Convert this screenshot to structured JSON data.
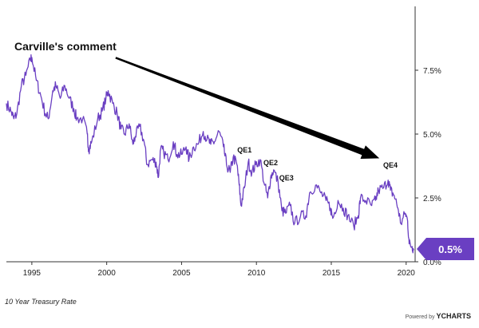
{
  "caption": "10 Year Treasury Rate",
  "branding": {
    "prefix": "Powered by ",
    "mark": "YCHARTS"
  },
  "colors": {
    "line": "#6a3fc2",
    "badge": "#6a3fc2",
    "badge_text": "#ffffff",
    "arrow": "#000000"
  },
  "chart_data": {
    "type": "line",
    "series": [
      {
        "values": [
          [
            1993.3,
            6.2
          ],
          [
            1993.6,
            5.9
          ],
          [
            1993.8,
            5.6
          ],
          [
            1994.0,
            5.8
          ],
          [
            1994.3,
            6.9
          ],
          [
            1994.6,
            7.3
          ],
          [
            1994.9,
            7.9
          ],
          [
            1995.0,
            8.0
          ],
          [
            1995.3,
            7.1
          ],
          [
            1995.6,
            6.5
          ],
          [
            1995.9,
            5.8
          ],
          [
            1996.1,
            5.6
          ],
          [
            1996.4,
            6.7
          ],
          [
            1996.6,
            6.9
          ],
          [
            1996.9,
            6.4
          ],
          [
            1997.2,
            6.9
          ],
          [
            1997.5,
            6.4
          ],
          [
            1997.8,
            6.0
          ],
          [
            1998.0,
            5.6
          ],
          [
            1998.4,
            5.6
          ],
          [
            1998.7,
            5.0
          ],
          [
            1998.8,
            4.4
          ],
          [
            1999.0,
            4.7
          ],
          [
            1999.4,
            5.6
          ],
          [
            1999.7,
            5.9
          ],
          [
            1999.95,
            6.4
          ],
          [
            2000.1,
            6.7
          ],
          [
            2000.4,
            6.2
          ],
          [
            2000.7,
            5.8
          ],
          [
            2000.95,
            5.2
          ],
          [
            2001.2,
            5.0
          ],
          [
            2001.5,
            5.4
          ],
          [
            2001.75,
            4.6
          ],
          [
            2001.9,
            4.9
          ],
          [
            2002.2,
            5.3
          ],
          [
            2002.5,
            4.7
          ],
          [
            2002.7,
            3.8
          ],
          [
            2003.0,
            4.0
          ],
          [
            2003.3,
            3.9
          ],
          [
            2003.45,
            3.3
          ],
          [
            2003.6,
            4.4
          ],
          [
            2003.8,
            4.3
          ],
          [
            2004.1,
            4.0
          ],
          [
            2004.45,
            4.7
          ],
          [
            2004.7,
            4.2
          ],
          [
            2005.0,
            4.2
          ],
          [
            2005.3,
            4.5
          ],
          [
            2005.5,
            4.0
          ],
          [
            2005.8,
            4.5
          ],
          [
            2006.1,
            4.6
          ],
          [
            2006.45,
            5.1
          ],
          [
            2006.7,
            4.8
          ],
          [
            2006.95,
            4.6
          ],
          [
            2007.2,
            4.7
          ],
          [
            2007.5,
            5.1
          ],
          [
            2007.8,
            4.5
          ],
          [
            2008.0,
            3.8
          ],
          [
            2008.25,
            3.5
          ],
          [
            2008.45,
            4.1
          ],
          [
            2008.7,
            3.8
          ],
          [
            2008.85,
            3.0
          ],
          [
            2008.97,
            2.2
          ],
          [
            2009.2,
            2.9
          ],
          [
            2009.45,
            3.9
          ],
          [
            2009.7,
            3.5
          ],
          [
            2009.95,
            3.8
          ],
          [
            2010.25,
            4.0
          ],
          [
            2010.55,
            3.0
          ],
          [
            2010.75,
            2.5
          ],
          [
            2010.95,
            3.3
          ],
          [
            2011.15,
            3.6
          ],
          [
            2011.45,
            3.1
          ],
          [
            2011.7,
            2.0
          ],
          [
            2011.95,
            1.9
          ],
          [
            2012.25,
            2.2
          ],
          [
            2012.55,
            1.5
          ],
          [
            2012.95,
            1.8
          ],
          [
            2013.3,
            1.8
          ],
          [
            2013.55,
            2.7
          ],
          [
            2013.95,
            3.0
          ],
          [
            2014.3,
            2.7
          ],
          [
            2014.65,
            2.4
          ],
          [
            2014.95,
            2.1
          ],
          [
            2015.1,
            1.7
          ],
          [
            2015.45,
            2.4
          ],
          [
            2015.8,
            2.1
          ],
          [
            2016.1,
            1.8
          ],
          [
            2016.5,
            1.4
          ],
          [
            2016.8,
            1.8
          ],
          [
            2016.95,
            2.5
          ],
          [
            2017.3,
            2.4
          ],
          [
            2017.7,
            2.2
          ],
          [
            2017.95,
            2.4
          ],
          [
            2018.15,
            2.8
          ],
          [
            2018.5,
            2.9
          ],
          [
            2018.8,
            3.2
          ],
          [
            2018.95,
            2.8
          ],
          [
            2019.2,
            2.6
          ],
          [
            2019.45,
            2.1
          ],
          [
            2019.65,
            1.5
          ],
          [
            2019.95,
            1.9
          ],
          [
            2020.1,
            1.6
          ],
          [
            2020.2,
            0.7
          ],
          [
            2020.4,
            0.6
          ],
          [
            2020.5,
            0.5
          ]
        ]
      }
    ],
    "xlim": [
      1993.3,
      2020.6
    ],
    "ylim": [
      0,
      10.0
    ],
    "x_ticks": [
      {
        "value": 1995,
        "label": "1995"
      },
      {
        "value": 2000,
        "label": "2000"
      },
      {
        "value": 2005,
        "label": "2005"
      },
      {
        "value": 2010,
        "label": "2010"
      },
      {
        "value": 2015,
        "label": "2015"
      },
      {
        "value": 2020,
        "label": "2020"
      }
    ],
    "y_ticks": [
      {
        "value": 0,
        "label": "0.0%"
      },
      {
        "value": 2.5,
        "label": "2.5%"
      },
      {
        "value": 5.0,
        "label": "5.0%"
      },
      {
        "value": 7.5,
        "label": "7.5%"
      }
    ],
    "grid": false,
    "annotations": [
      {
        "text": "Carville's comment",
        "x": 1995.0,
        "y": 8.0,
        "bold": true,
        "size": "large"
      },
      {
        "text": "QE1",
        "x": 2009.2,
        "y": 4.1
      },
      {
        "text": "QE2",
        "x": 2010.95,
        "y": 3.6
      },
      {
        "text": "QE3",
        "x": 2012.0,
        "y": 3.0
      },
      {
        "text": "QE4",
        "x": 2018.95,
        "y": 3.5
      }
    ],
    "arrow": {
      "from": [
        1993.4,
        8.3
      ],
      "to": [
        2018.0,
        3.8
      ]
    },
    "last_value": {
      "label": "0.5%",
      "value": 0.5
    }
  }
}
